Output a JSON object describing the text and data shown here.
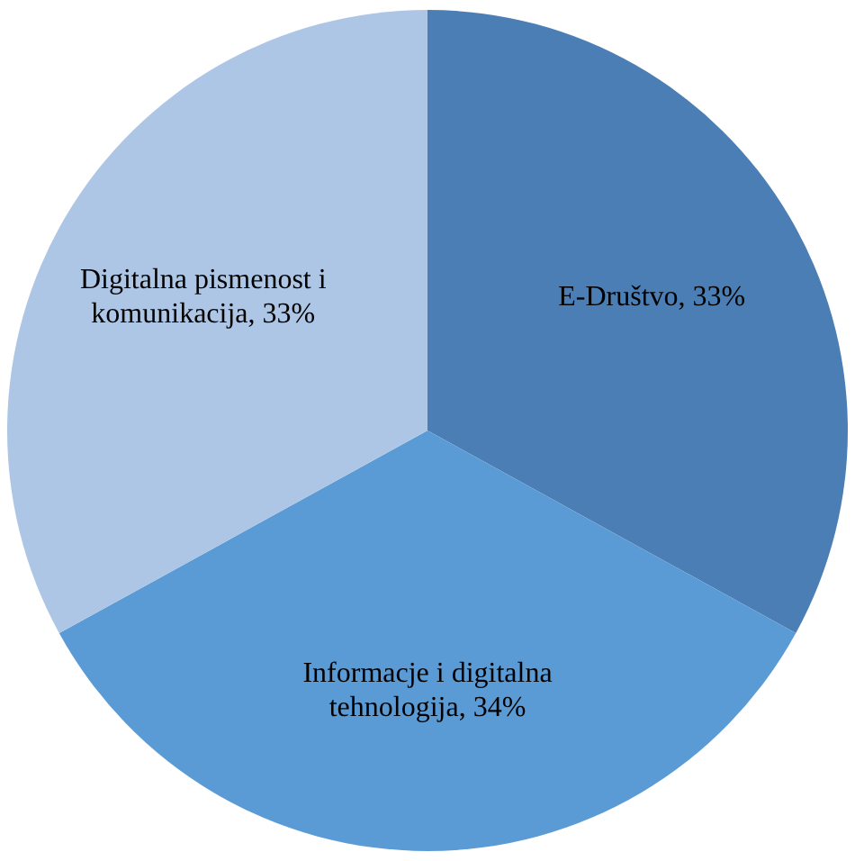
{
  "chart_data": {
    "type": "pie",
    "categories": [
      "E-Društvo",
      "Informacje i digitalna tehnologija",
      "Digitalna pismenost i komunikacija"
    ],
    "values": [
      33,
      34,
      33
    ],
    "value_labels": [
      "33%",
      "34%",
      "33%"
    ],
    "colors": [
      "#4a7eb4",
      "#5b9bd5",
      "#adc6e5"
    ],
    "legend": false
  }
}
